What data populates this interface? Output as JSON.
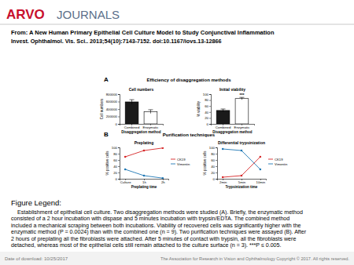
{
  "logo": {
    "brand": "ARVO",
    "product": "JOURNALS"
  },
  "header": {
    "title": "From: A New Human Primary Epithelial Cell Culture Model to Study Conjunctival Inflammation",
    "citation": "Invest. Ophthalmol. Vis. Sci.. 2013;54(10):7143-7152. doi:10.1167/iovs.13-12866"
  },
  "figure": {
    "panels": [
      {
        "letter": "A",
        "title": "Efficiency of disaggregation methods"
      },
      {
        "letter": "B",
        "title": "Purification techniques"
      }
    ]
  },
  "chart_data": [
    {
      "type": "bar",
      "title": "Cell numbers",
      "categories": [
        "Combined",
        "Enzymatic"
      ],
      "values": [
        590000,
        330000
      ],
      "errors": [
        60000,
        50000
      ],
      "colors": [
        "#1a1a1a",
        "#ffffff"
      ],
      "x_label": "Disaggregation method",
      "y_label": "Cell numbers",
      "ylim": [
        0,
        800000
      ],
      "yticks": [
        0,
        200000,
        400000,
        600000,
        800000
      ]
    },
    {
      "type": "bar",
      "title": "Initial viability",
      "categories": [
        "Combined",
        "Enzymatic"
      ],
      "values": [
        45,
        85
      ],
      "errors": [
        5,
        4
      ],
      "colors": [
        "#1a1a1a",
        "#ffffff"
      ],
      "x_label": "Disaggregation method",
      "y_label": "% viability",
      "annotation": "***",
      "ylim": [
        0,
        100
      ],
      "yticks": [
        0,
        20,
        40,
        60,
        80,
        100
      ]
    },
    {
      "type": "line",
      "title": "Preplating",
      "categories": [
        "Culture",
        "1h",
        "2h"
      ],
      "series": [
        {
          "name": "CK19",
          "color": "#d62728",
          "values": [
            70,
            90,
            98
          ]
        },
        {
          "name": "Vimentin",
          "color": "#1f77b4",
          "values": [
            30,
            10,
            2
          ]
        }
      ],
      "marker": "circle",
      "legend": "right",
      "x_label": "Preplating time",
      "y_label": "% positive cells",
      "ylim": [
        0,
        100
      ],
      "yticks": [
        0,
        20,
        40,
        60,
        80,
        100
      ]
    },
    {
      "type": "line",
      "title": "Differential trypsinization",
      "categories": [
        "2min",
        "5min",
        "10min"
      ],
      "series": [
        {
          "name": "CK19",
          "color": "#d62728",
          "values": [
            5,
            10,
            70
          ]
        },
        {
          "name": "Vimentin",
          "color": "#1f77b4",
          "values": [
            95,
            90,
            30
          ]
        }
      ],
      "marker": "circle",
      "legend": "right",
      "x_label": "Trypsinization time",
      "y_label": "% positive cells",
      "ylim": [
        0,
        100
      ],
      "yticks": [
        0,
        20,
        40,
        60,
        80,
        100
      ]
    }
  ],
  "legend": {
    "heading": "Figure Legend:",
    "lines": [
      "Establishment of epithelial cell culture. Two disaggregation methods were studied (A). Briefly, the enzymatic method",
      "consisted of a 2 hour incubation with dispase and 5 minutes incubation with trypsin/EDTA. The combined method",
      "included a mechanical scraping between both incubations. Viability of recovered cells was significantly higher with the",
      "enzymatic method (P = 0.0024) than with the combined one (n = 9). Two purification techniques were assayed (B). After",
      "2 hours of preplating all the fibroblasts were attached. After 5 minutes of contact with trypsin, all the fibroblasts were",
      "detached, whereas most of the epithelial cells still remain attached to the culture surface (n = 3). ***P ≤ 0.005."
    ]
  },
  "footer": {
    "date": "Date of download: 10/25/2017",
    "copyright": "The Association for Research in Vision and Ophthalmology Copyright © 2017. All rights reserved."
  }
}
